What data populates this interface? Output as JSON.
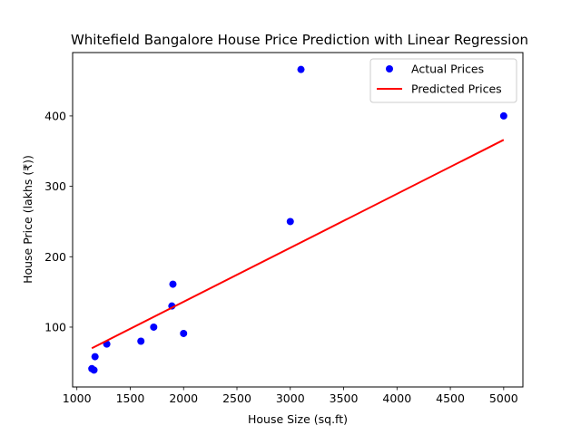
{
  "chart_data": {
    "type": "scatter",
    "title": "Whitefield Bangalore House Price Prediction with Linear Regression",
    "xlabel": "House Size (sq.ft)",
    "ylabel": "House Price (lakhs (₹))",
    "xlim": [
      960,
      5180
    ],
    "ylim": [
      15,
      490
    ],
    "x_ticks": [
      1000,
      1500,
      2000,
      2500,
      3000,
      3500,
      4000,
      4500,
      5000
    ],
    "y_ticks": [
      100,
      200,
      300,
      400
    ],
    "grid": false,
    "legend_position": "top-right",
    "series": [
      {
        "name": "Actual Prices",
        "kind": "scatter",
        "color": "#0000ff",
        "points": [
          {
            "x": 1140,
            "y": 41
          },
          {
            "x": 1160,
            "y": 39
          },
          {
            "x": 1170,
            "y": 58
          },
          {
            "x": 1280,
            "y": 76
          },
          {
            "x": 1600,
            "y": 80
          },
          {
            "x": 1720,
            "y": 100
          },
          {
            "x": 1890,
            "y": 130
          },
          {
            "x": 1900,
            "y": 161
          },
          {
            "x": 2000,
            "y": 91
          },
          {
            "x": 3000,
            "y": 250
          },
          {
            "x": 3100,
            "y": 466
          },
          {
            "x": 5000,
            "y": 400
          }
        ]
      },
      {
        "name": "Predicted Prices",
        "kind": "line",
        "color": "#ff0000",
        "points": [
          {
            "x": 1140,
            "y": 70
          },
          {
            "x": 5000,
            "y": 366
          }
        ]
      }
    ]
  }
}
